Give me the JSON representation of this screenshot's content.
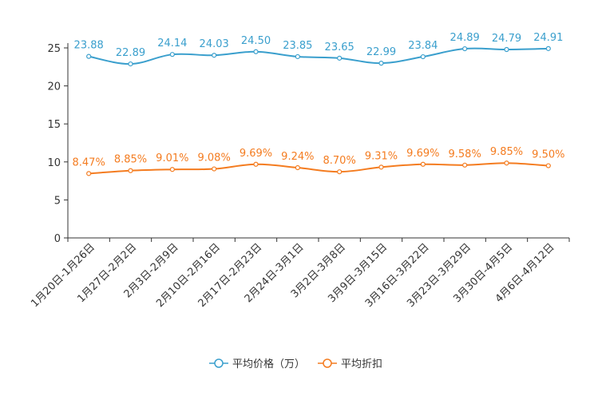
{
  "chart_data": {
    "type": "line",
    "categories": [
      "1月20日-1月26日",
      "1月27日-2月2日",
      "2月3日-2月9日",
      "2月10日-2月16日",
      "2月17日-2月23日",
      "2月24日-3月1日",
      "3月2日-3月8日",
      "3月9日-3月15日",
      "3月16日-3月22日",
      "3月23日-3月29日",
      "3月30日-4月5日",
      "4月6日-4月12日"
    ],
    "ylim": [
      0,
      25
    ],
    "yticks": [
      0,
      5,
      10,
      15,
      20,
      25
    ],
    "series": [
      {
        "name": "平均价格（万）",
        "color": "#3a9fcd",
        "values": [
          23.88,
          22.89,
          24.14,
          24.03,
          24.5,
          23.85,
          23.65,
          22.99,
          23.84,
          24.89,
          24.79,
          24.91
        ],
        "labels": [
          "23.88",
          "22.89",
          "24.14",
          "24.03",
          "24.50",
          "23.85",
          "23.65",
          "22.99",
          "23.84",
          "24.89",
          "24.79",
          "24.91"
        ]
      },
      {
        "name": "平均折扣",
        "color": "#f47c20",
        "values": [
          8.47,
          8.85,
          9.01,
          9.08,
          9.69,
          9.24,
          8.7,
          9.31,
          9.69,
          9.58,
          9.85,
          9.5
        ],
        "labels": [
          "8.47%",
          "8.85%",
          "9.01%",
          "9.08%",
          "9.69%",
          "9.24%",
          "8.70%",
          "9.31%",
          "9.69%",
          "9.58%",
          "9.85%",
          "9.50%"
        ]
      }
    ],
    "legend_position": "bottom-center",
    "grid": false
  }
}
